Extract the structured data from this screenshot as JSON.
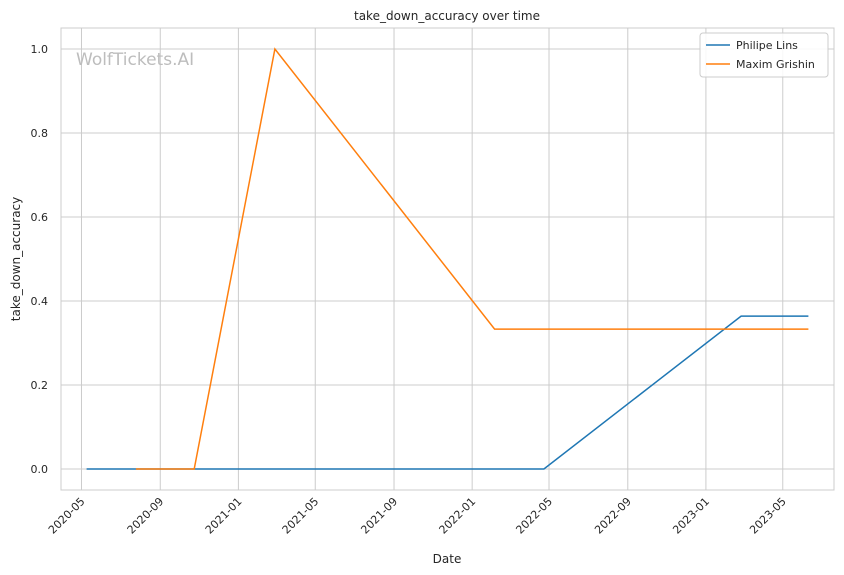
{
  "chart_data": {
    "type": "line",
    "title": "take_down_accuracy over time",
    "xlabel": "Date",
    "ylabel": "take_down_accuracy",
    "watermark": "WolfTickets.AI",
    "grid": true,
    "legend_position": "top-right",
    "xlim": [
      "2020-03-30",
      "2023-07-20"
    ],
    "ylim": [
      -0.05,
      1.05
    ],
    "x_ticks": [
      "2020-05",
      "2020-09",
      "2021-01",
      "2021-05",
      "2021-09",
      "2022-01",
      "2022-05",
      "2022-09",
      "2023-01",
      "2023-05"
    ],
    "y_ticks": [
      "0.0",
      "0.2",
      "0.4",
      "0.6",
      "0.8",
      "1.0"
    ],
    "series": [
      {
        "name": "Philipe Lins",
        "color": "#1f77b4",
        "points": [
          {
            "x": "2020-05-09",
            "y": 0.0
          },
          {
            "x": "2022-04-23",
            "y": 0.0
          },
          {
            "x": "2023-02-25",
            "y": 0.364
          },
          {
            "x": "2023-06-10",
            "y": 0.364
          }
        ]
      },
      {
        "name": "Maxim Grishin",
        "color": "#ff7f0e",
        "points": [
          {
            "x": "2020-07-25",
            "y": 0.0
          },
          {
            "x": "2020-10-24",
            "y": 0.0
          },
          {
            "x": "2021-02-27",
            "y": 1.0
          },
          {
            "x": "2022-02-05",
            "y": 0.333
          },
          {
            "x": "2023-06-10",
            "y": 0.333
          }
        ]
      }
    ]
  }
}
